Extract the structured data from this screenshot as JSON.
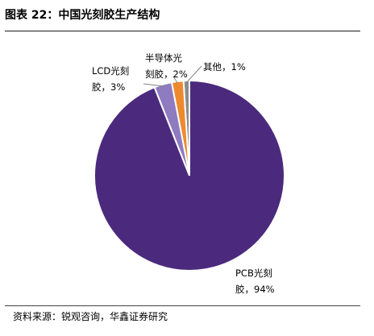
{
  "figure": {
    "title": "图表 22：中国光刻胶生产结构",
    "source": "资料来源：锐观咨询，华鑫证券研究"
  },
  "chart_data": {
    "type": "pie",
    "title": "图表 22：中国光刻胶生产结构",
    "slices": [
      {
        "label_lines": [
          "其他，1%"
        ],
        "category": "其他",
        "value": 1,
        "color": "#8c8c8c"
      },
      {
        "label_lines": [
          "半导体光",
          "刻胶，2%"
        ],
        "category": "半导体光刻胶",
        "value": 2,
        "color": "#ee8a2e"
      },
      {
        "label_lines": [
          "LCD光刻",
          "胶，3%"
        ],
        "category": "LCD光刻胶",
        "value": 3,
        "color": "#8f7bc0"
      },
      {
        "label_lines": [
          "PCB光刻",
          "胶，94%"
        ],
        "category": "PCB光刻胶",
        "value": 94,
        "color": "#4b2a7d"
      }
    ]
  }
}
